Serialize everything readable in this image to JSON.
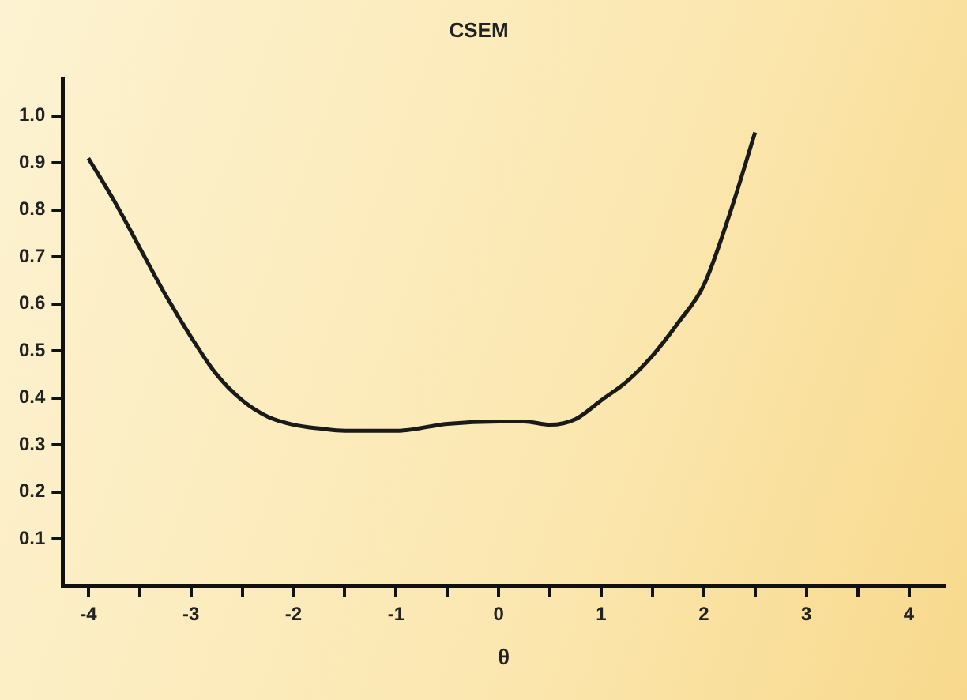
{
  "chart_data": {
    "type": "line",
    "title": "CSEM",
    "xlabel": "θ",
    "x": [
      -4,
      -3.75,
      -3.5,
      -3.25,
      -3,
      -2.75,
      -2.5,
      -2.25,
      -2,
      -1.75,
      -1.5,
      -1,
      -0.5,
      0,
      0.25,
      0.5,
      0.75,
      1,
      1.25,
      1.5,
      1.75,
      2,
      2.25,
      2.5
    ],
    "series": [
      {
        "color": "#1a1a1a",
        "values": [
          0.91,
          0.82,
          0.72,
          0.62,
          0.53,
          0.45,
          0.395,
          0.36,
          0.343,
          0.335,
          0.33,
          0.33,
          0.345,
          0.35,
          0.35,
          0.343,
          0.355,
          0.395,
          0.435,
          0.49,
          0.56,
          0.64,
          0.79,
          0.965
        ]
      }
    ],
    "xlim": [
      -4.25,
      4.35
    ],
    "xticks": [
      -4,
      {
        "value": -3.5,
        "label": null
      },
      -3,
      {
        "value": -2.5,
        "label": null
      },
      -2,
      {
        "value": -1.5,
        "label": null
      },
      -1,
      {
        "value": -0.5,
        "label": null
      },
      0,
      {
        "value": 0.5,
        "label": null
      },
      1,
      {
        "value": 1.5,
        "label": null
      },
      2,
      {
        "value": 2.5,
        "label": null
      },
      3,
      {
        "value": 3.5,
        "label": null
      },
      4
    ],
    "ylim": [
      0,
      1.08
    ],
    "yticks": [
      0.1,
      0.2,
      0.3,
      0.4,
      0.5,
      0.6,
      0.7,
      0.8,
      0.9,
      {
        "value": 1,
        "label": "1.0"
      }
    ],
    "grid": false,
    "legend": false,
    "marker": "none",
    "line_style": "solid"
  }
}
